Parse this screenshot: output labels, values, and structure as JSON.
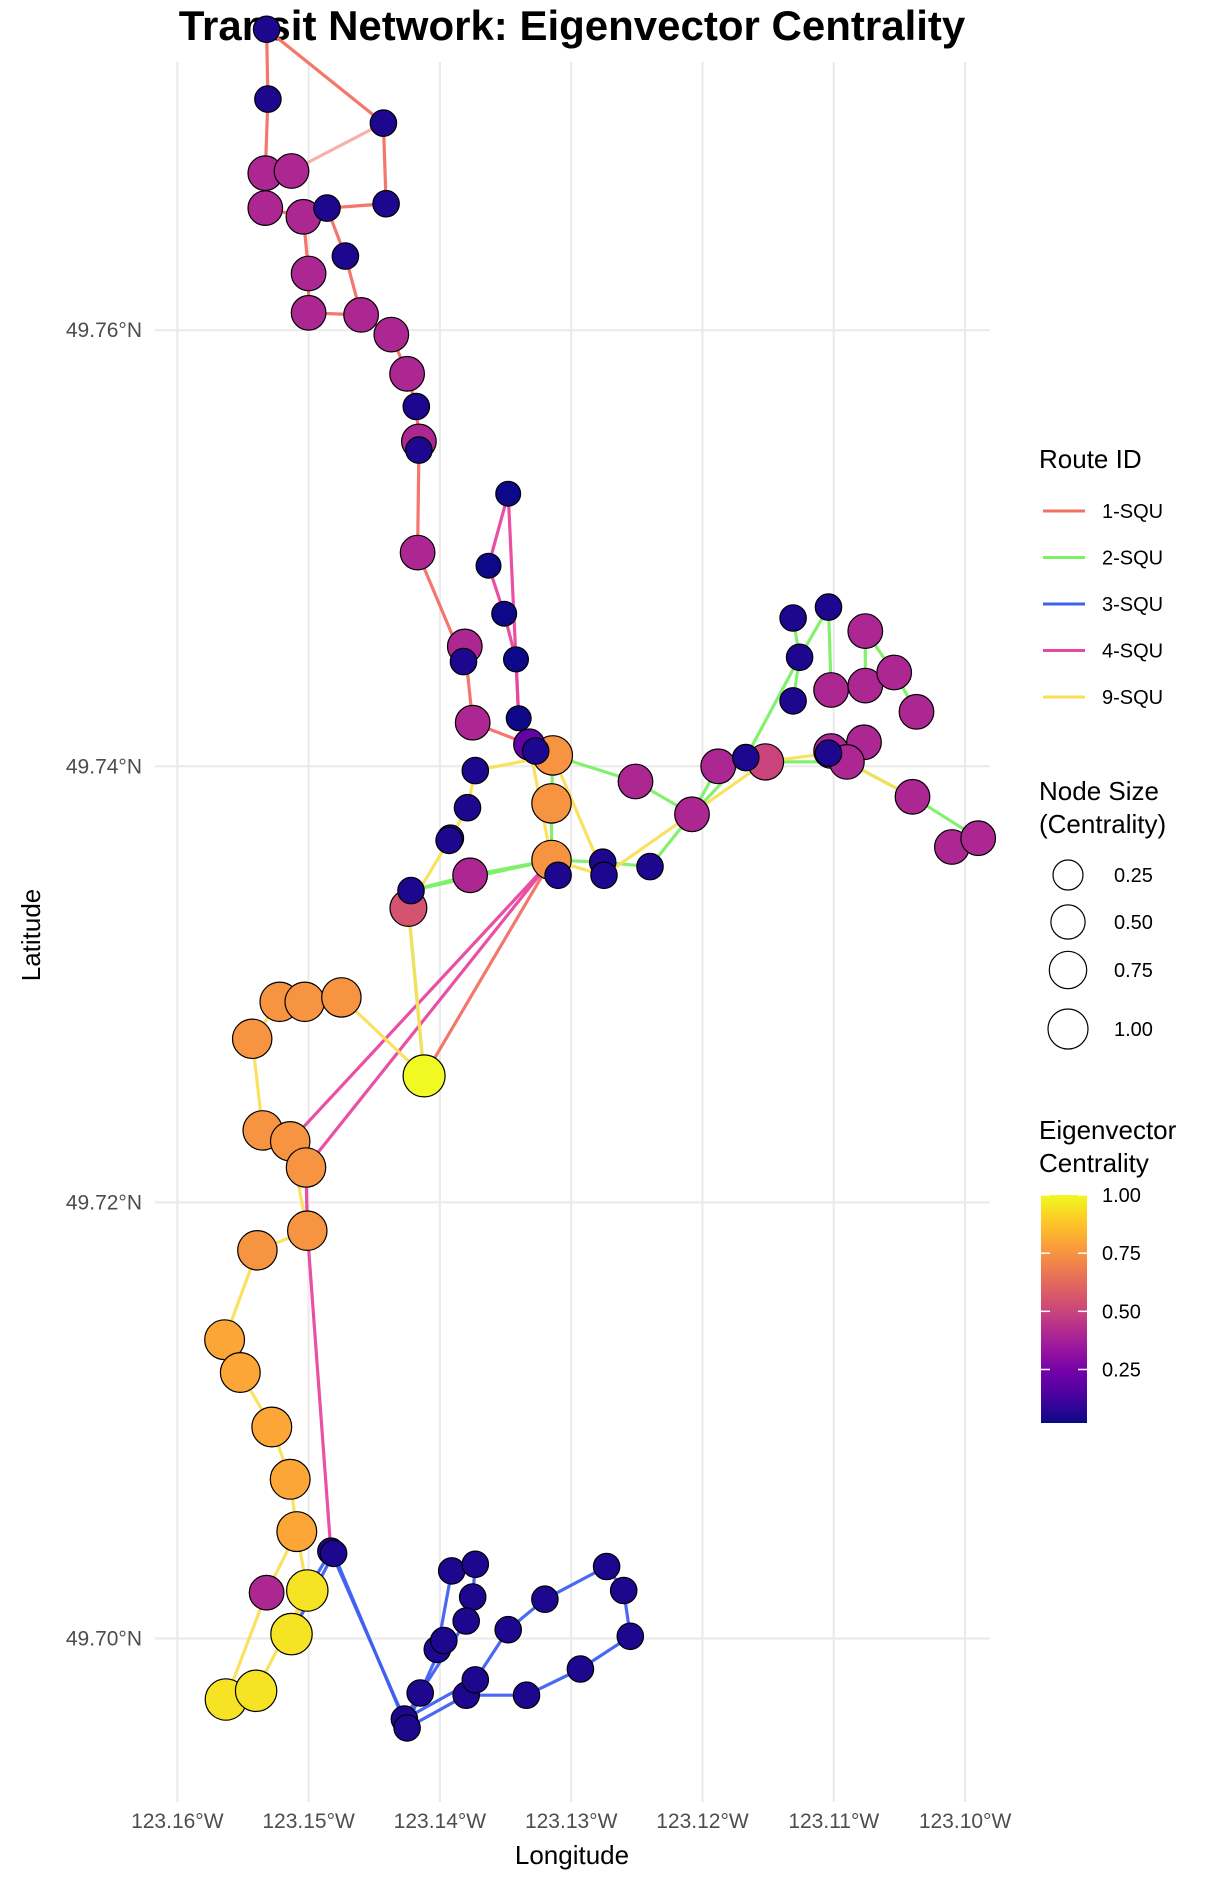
{
  "chart_data": {
    "type": "scatter",
    "title": "Transit Network: Eigenvector Centrality",
    "xlabel": "Longitude",
    "ylabel": "Latitude",
    "xlim": [
      -123.1617,
      -123.0981
    ],
    "ylim": [
      49.6925,
      49.7723
    ],
    "x_ticks": [
      {
        "value": -123.16,
        "label": "123.16°W"
      },
      {
        "value": -123.15,
        "label": "123.15°W"
      },
      {
        "value": -123.14,
        "label": "123.14°W"
      },
      {
        "value": -123.13,
        "label": "123.13°W"
      },
      {
        "value": -123.12,
        "label": "123.12°W"
      },
      {
        "value": -123.11,
        "label": "123.11°W"
      },
      {
        "value": -123.1,
        "label": "123.10°W"
      }
    ],
    "y_ticks": [
      {
        "value": 49.7,
        "label": "49.70°N"
      },
      {
        "value": 49.72,
        "label": "49.72°N"
      },
      {
        "value": 49.74,
        "label": "49.74°N"
      },
      {
        "value": 49.76,
        "label": "49.76°N"
      }
    ],
    "grid": true,
    "routes": {
      "title": "Route ID",
      "items": [
        {
          "name": "1-SQU",
          "color": "#f27064"
        },
        {
          "name": "2-SQU",
          "color": "#7cf066"
        },
        {
          "name": "3-SQU",
          "color": "#4060f0"
        },
        {
          "name": "4-SQU",
          "color": "#e8479f"
        },
        {
          "name": "9-SQU",
          "color": "#f9df5a"
        }
      ]
    },
    "size_legend": {
      "title_lines": [
        "Node Size",
        "(Centrality)"
      ],
      "items": [
        {
          "value": 0.25,
          "label": "0.25"
        },
        {
          "value": 0.5,
          "label": "0.50"
        },
        {
          "value": 0.75,
          "label": "0.75"
        },
        {
          "value": 1.0,
          "label": "1.00"
        }
      ]
    },
    "color_legend": {
      "title_lines": [
        "Eigenvector",
        "Centrality"
      ],
      "colormap": "plasma",
      "range": [
        0.02,
        1.0
      ],
      "ticks": [
        {
          "value": 1.0,
          "label": "1.00"
        },
        {
          "value": 0.75,
          "label": "0.75"
        },
        {
          "value": 0.5,
          "label": "0.50"
        },
        {
          "value": 0.25,
          "label": "0.25"
        }
      ]
    },
    "nodes": [
      {
        "id": "a1",
        "lon": -123.1532,
        "lat": 49.7738,
        "c": 0.05
      },
      {
        "id": "a2",
        "lon": -123.1531,
        "lat": 49.7706,
        "c": 0.05
      },
      {
        "id": "a3",
        "lon": -123.1443,
        "lat": 49.7695,
        "c": 0.05
      },
      {
        "id": "a4",
        "lon": -123.1533,
        "lat": 49.7672,
        "c": 0.4
      },
      {
        "id": "a5",
        "lon": -123.1513,
        "lat": 49.7673,
        "c": 0.4
      },
      {
        "id": "a6",
        "lon": -123.1533,
        "lat": 49.7656,
        "c": 0.4
      },
      {
        "id": "a7",
        "lon": -123.1504,
        "lat": 49.7652,
        "c": 0.4
      },
      {
        "id": "a8",
        "lon": -123.1486,
        "lat": 49.7656,
        "c": 0.05
      },
      {
        "id": "a9",
        "lon": -123.1441,
        "lat": 49.7658,
        "c": 0.05
      },
      {
        "id": "a10",
        "lon": -123.1472,
        "lat": 49.7634,
        "c": 0.05
      },
      {
        "id": "a11",
        "lon": -123.15,
        "lat": 49.7626,
        "c": 0.4
      },
      {
        "id": "a12",
        "lon": -123.15,
        "lat": 49.7608,
        "c": 0.4
      },
      {
        "id": "a13",
        "lon": -123.146,
        "lat": 49.7607,
        "c": 0.4
      },
      {
        "id": "a14",
        "lon": -123.1437,
        "lat": 49.7598,
        "c": 0.4
      },
      {
        "id": "a15",
        "lon": -123.1425,
        "lat": 49.758,
        "c": 0.4
      },
      {
        "id": "a16",
        "lon": -123.1418,
        "lat": 49.7565,
        "c": 0.05
      },
      {
        "id": "a17",
        "lon": -123.1416,
        "lat": 49.7545,
        "c": 0.05
      },
      {
        "id": "a18",
        "lon": -123.1416,
        "lat": 49.7549,
        "c": 0.4
      },
      {
        "id": "a19",
        "lon": -123.1417,
        "lat": 49.7498,
        "c": 0.4
      },
      {
        "id": "a20",
        "lon": -123.1382,
        "lat": 49.7448,
        "c": 0.05
      },
      {
        "id": "a21",
        "lon": -123.1381,
        "lat": 49.7455,
        "c": 0.4
      },
      {
        "id": "a22",
        "lon": -123.1375,
        "lat": 49.742,
        "c": 0.4
      },
      {
        "id": "p1",
        "lon": -123.1348,
        "lat": 49.7525,
        "c": 0.02
      },
      {
        "id": "p2",
        "lon": -123.1363,
        "lat": 49.7492,
        "c": 0.02
      },
      {
        "id": "p3",
        "lon": -123.1351,
        "lat": 49.747,
        "c": 0.02
      },
      {
        "id": "p4",
        "lon": -123.1342,
        "lat": 49.7449,
        "c": 0.02
      },
      {
        "id": "p5",
        "lon": -123.134,
        "lat": 49.7422,
        "c": 0.02
      },
      {
        "id": "c1",
        "lon": -123.1332,
        "lat": 49.741,
        "c": 0.2
      },
      {
        "id": "c2",
        "lon": -123.1327,
        "lat": 49.7407,
        "c": 0.05
      },
      {
        "id": "c3",
        "lon": -123.1314,
        "lat": 49.7405,
        "c": 0.75
      },
      {
        "id": "c4",
        "lon": -123.1315,
        "lat": 49.7383,
        "c": 0.75
      },
      {
        "id": "c5",
        "lon": -123.1315,
        "lat": 49.7357,
        "c": 0.75
      },
      {
        "id": "c6",
        "lon": -123.131,
        "lat": 49.735,
        "c": 0.05
      },
      {
        "id": "d1",
        "lon": -123.1373,
        "lat": 49.7398,
        "c": 0.05
      },
      {
        "id": "d2",
        "lon": -123.1379,
        "lat": 49.7381,
        "c": 0.05
      },
      {
        "id": "d3",
        "lon": -123.1392,
        "lat": 49.7367,
        "c": 0.05
      },
      {
        "id": "d4",
        "lon": -123.1393,
        "lat": 49.7366,
        "c": 0.05
      },
      {
        "id": "d5",
        "lon": -123.1377,
        "lat": 49.735,
        "c": 0.4
      },
      {
        "id": "d6",
        "lon": -123.1422,
        "lat": 49.7343,
        "c": 0.05
      },
      {
        "id": "d7",
        "lon": -123.1424,
        "lat": 49.7335,
        "c": 0.55
      },
      {
        "id": "y1",
        "lon": -123.1412,
        "lat": 49.7258,
        "c": 1.0
      },
      {
        "id": "e1",
        "lon": -123.1276,
        "lat": 49.7356,
        "c": 0.05
      },
      {
        "id": "e2",
        "lon": -123.1275,
        "lat": 49.735,
        "c": 0.05
      },
      {
        "id": "e3",
        "lon": -123.124,
        "lat": 49.7354,
        "c": 0.05
      },
      {
        "id": "e4",
        "lon": -123.1251,
        "lat": 49.7393,
        "c": 0.4
      },
      {
        "id": "e5",
        "lon": -123.1208,
        "lat": 49.7378,
        "c": 0.4
      },
      {
        "id": "e6",
        "lon": -123.1188,
        "lat": 49.74,
        "c": 0.4
      },
      {
        "id": "e7",
        "lon": -123.1167,
        "lat": 49.7404,
        "c": 0.05
      },
      {
        "id": "e8",
        "lon": -123.1152,
        "lat": 49.7402,
        "c": 0.5
      },
      {
        "id": "e9",
        "lon": -123.1131,
        "lat": 49.7468,
        "c": 0.05
      },
      {
        "id": "e10",
        "lon": -123.1104,
        "lat": 49.7473,
        "c": 0.05
      },
      {
        "id": "e11",
        "lon": -123.1126,
        "lat": 49.745,
        "c": 0.05
      },
      {
        "id": "e12",
        "lon": -123.1131,
        "lat": 49.743,
        "c": 0.05
      },
      {
        "id": "e13",
        "lon": -123.1076,
        "lat": 49.7462,
        "c": 0.4
      },
      {
        "id": "e14",
        "lon": -123.1102,
        "lat": 49.7435,
        "c": 0.4
      },
      {
        "id": "e15",
        "lon": -123.1076,
        "lat": 49.7437,
        "c": 0.4
      },
      {
        "id": "e16",
        "lon": -123.1054,
        "lat": 49.7443,
        "c": 0.4
      },
      {
        "id": "e17",
        "lon": -123.1037,
        "lat": 49.7425,
        "c": 0.4
      },
      {
        "id": "e18",
        "lon": -123.1077,
        "lat": 49.7411,
        "c": 0.4
      },
      {
        "id": "e19",
        "lon": -123.1104,
        "lat": 49.7406,
        "c": 0.05
      },
      {
        "id": "e20",
        "lon": -123.1102,
        "lat": 49.7407,
        "c": 0.4
      },
      {
        "id": "e21",
        "lon": -123.109,
        "lat": 49.7402,
        "c": 0.4
      },
      {
        "id": "e22",
        "lon": -123.104,
        "lat": 49.7386,
        "c": 0.4
      },
      {
        "id": "e23",
        "lon": -123.101,
        "lat": 49.7363,
        "c": 0.4
      },
      {
        "id": "e24",
        "lon": -123.099,
        "lat": 49.7367,
        "c": 0.4
      },
      {
        "id": "w1",
        "lon": -123.1522,
        "lat": 49.7292,
        "c": 0.75
      },
      {
        "id": "w2",
        "lon": -123.1503,
        "lat": 49.7292,
        "c": 0.75
      },
      {
        "id": "w3",
        "lon": -123.1475,
        "lat": 49.7294,
        "c": 0.75
      },
      {
        "id": "w4",
        "lon": -123.1543,
        "lat": 49.7275,
        "c": 0.75
      },
      {
        "id": "w5",
        "lon": -123.1535,
        "lat": 49.7233,
        "c": 0.75
      },
      {
        "id": "w6",
        "lon": -123.1514,
        "lat": 49.7228,
        "c": 0.75
      },
      {
        "id": "w7",
        "lon": -123.1502,
        "lat": 49.7216,
        "c": 0.75
      },
      {
        "id": "w8",
        "lon": -123.1501,
        "lat": 49.7187,
        "c": 0.75
      },
      {
        "id": "w9",
        "lon": -123.1539,
        "lat": 49.7178,
        "c": 0.75
      },
      {
        "id": "w10",
        "lon": -123.1564,
        "lat": 49.7137,
        "c": 0.8
      },
      {
        "id": "w11",
        "lon": -123.1552,
        "lat": 49.7122,
        "c": 0.8
      },
      {
        "id": "w12",
        "lon": -123.1528,
        "lat": 49.7097,
        "c": 0.8
      },
      {
        "id": "w13",
        "lon": -123.1514,
        "lat": 49.7073,
        "c": 0.8
      },
      {
        "id": "w14",
        "lon": -123.1509,
        "lat": 49.7049,
        "c": 0.8
      },
      {
        "id": "w15",
        "lon": -123.1532,
        "lat": 49.7021,
        "c": 0.4
      },
      {
        "id": "w16",
        "lon": -123.1501,
        "lat": 49.7022,
        "c": 0.95
      },
      {
        "id": "w17",
        "lon": -123.1513,
        "lat": 49.7002,
        "c": 0.95
      },
      {
        "id": "w18",
        "lon": -123.1563,
        "lat": 49.6972,
        "c": 0.95
      },
      {
        "id": "w19",
        "lon": -123.154,
        "lat": 49.6976,
        "c": 0.95
      },
      {
        "id": "b1",
        "lon": -123.1483,
        "lat": 49.704,
        "c": 0.05
      },
      {
        "id": "b2",
        "lon": -123.1481,
        "lat": 49.7039,
        "c": 0.05
      },
      {
        "id": "b3",
        "lon": -123.1427,
        "lat": 49.6963,
        "c": 0.05
      },
      {
        "id": "b4",
        "lon": -123.1425,
        "lat": 49.6959,
        "c": 0.05
      },
      {
        "id": "b5",
        "lon": -123.1415,
        "lat": 49.6975,
        "c": 0.05
      },
      {
        "id": "b6",
        "lon": -123.1402,
        "lat": 49.6995,
        "c": 0.05
      },
      {
        "id": "b7",
        "lon": -123.1397,
        "lat": 49.6999,
        "c": 0.05
      },
      {
        "id": "b8",
        "lon": -123.1391,
        "lat": 49.7031,
        "c": 0.05
      },
      {
        "id": "b9",
        "lon": -123.1373,
        "lat": 49.7034,
        "c": 0.05
      },
      {
        "id": "b10",
        "lon": -123.1375,
        "lat": 49.7019,
        "c": 0.05
      },
      {
        "id": "b11",
        "lon": -123.138,
        "lat": 49.7008,
        "c": 0.05
      },
      {
        "id": "b12",
        "lon": -123.138,
        "lat": 49.6974,
        "c": 0.05
      },
      {
        "id": "b13",
        "lon": -123.1373,
        "lat": 49.6981,
        "c": 0.05
      },
      {
        "id": "b14",
        "lon": -123.1348,
        "lat": 49.7004,
        "c": 0.05
      },
      {
        "id": "b15",
        "lon": -123.1334,
        "lat": 49.6974,
        "c": 0.05
      },
      {
        "id": "b16",
        "lon": -123.132,
        "lat": 49.7018,
        "c": 0.05
      },
      {
        "id": "b17",
        "lon": -123.1293,
        "lat": 49.6986,
        "c": 0.05
      },
      {
        "id": "b18",
        "lon": -123.1273,
        "lat": 49.7033,
        "c": 0.05
      },
      {
        "id": "b19",
        "lon": -123.126,
        "lat": 49.7022,
        "c": 0.05
      },
      {
        "id": "b20",
        "lon": -123.1255,
        "lat": 49.7001,
        "c": 0.05
      }
    ],
    "edges": [
      {
        "route": "1-SQU",
        "path": [
          "a1",
          "a2",
          "a4"
        ]
      },
      {
        "route": "1-SQU",
        "path": [
          "a1",
          "a3",
          "a9",
          "a8",
          "a7",
          "a6"
        ]
      },
      {
        "route": "1-SQU",
        "path": [
          "a3",
          "a5"
        ],
        "faded": true
      },
      {
        "route": "1-SQU",
        "path": [
          "a5",
          "a4",
          "a6"
        ]
      },
      {
        "route": "1-SQU",
        "path": [
          "a8",
          "a10",
          "a13",
          "a14",
          "a15",
          "a16",
          "a18",
          "a17",
          "a19",
          "a20",
          "a21",
          "a22",
          "c1",
          "c3"
        ]
      },
      {
        "route": "1-SQU",
        "path": [
          "a7",
          "a11",
          "a12",
          "a13"
        ]
      },
      {
        "route": "1-SQU",
        "path": [
          "c5",
          "y1"
        ]
      },
      {
        "route": "4-SQU",
        "path": [
          "p1",
          "p2",
          "p3",
          "p4",
          "p5",
          "c1"
        ]
      },
      {
        "route": "4-SQU",
        "path": [
          "p1",
          "p5"
        ]
      },
      {
        "route": "4-SQU",
        "path": [
          "c5",
          "w6",
          "w7",
          "w8",
          "b1",
          "b2"
        ]
      },
      {
        "route": "4-SQU",
        "path": [
          "c5",
          "w7"
        ]
      },
      {
        "route": "2-SQU",
        "path": [
          "c3",
          "c4",
          "c5",
          "e1",
          "e3",
          "e5",
          "e6",
          "e8",
          "e21",
          "e22",
          "e24",
          "e23"
        ]
      },
      {
        "route": "2-SQU",
        "path": [
          "c3",
          "e4",
          "e5",
          "e7",
          "e11",
          "e9"
        ]
      },
      {
        "route": "2-SQU",
        "path": [
          "e12",
          "e11",
          "e10",
          "e14",
          "e15",
          "e13",
          "e16",
          "e17"
        ]
      },
      {
        "route": "2-SQU",
        "path": [
          "c5",
          "d5",
          "d6",
          "d7",
          "y1"
        ]
      },
      {
        "route": "2-SQU",
        "path": [
          "d6",
          "c5"
        ]
      },
      {
        "route": "9-SQU",
        "path": [
          "c3",
          "d1",
          "d2",
          "d3",
          "d7",
          "y1"
        ]
      },
      {
        "route": "9-SQU",
        "path": [
          "c1",
          "c5",
          "e2",
          "e8",
          "e19",
          "e20",
          "e21",
          "e22"
        ]
      },
      {
        "route": "9-SQU",
        "path": [
          "c3",
          "e2"
        ]
      },
      {
        "route": "9-SQU",
        "path": [
          "w1",
          "w2",
          "w3",
          "y1"
        ]
      },
      {
        "route": "9-SQU",
        "path": [
          "w4",
          "w5",
          "w6",
          "w8",
          "w9",
          "w10",
          "w11",
          "w12",
          "w13",
          "w14",
          "w16",
          "w17"
        ]
      },
      {
        "route": "9-SQU",
        "path": [
          "w4",
          "w1"
        ]
      },
      {
        "route": "9-SQU",
        "path": [
          "w14",
          "w15",
          "w18",
          "w19",
          "w16"
        ]
      },
      {
        "route": "3-SQU",
        "path": [
          "w16",
          "b1",
          "b3",
          "b5",
          "b7",
          "b6",
          "b8"
        ]
      },
      {
        "route": "3-SQU",
        "path": [
          "w17",
          "b2",
          "b4",
          "b12",
          "b13",
          "b14",
          "b16",
          "b18",
          "b19",
          "b20",
          "b17",
          "b15",
          "b12"
        ]
      },
      {
        "route": "3-SQU",
        "path": [
          "b4",
          "b5",
          "b11",
          "b10",
          "b9"
        ]
      },
      {
        "route": "3-SQU",
        "path": [
          "b3",
          "b13"
        ]
      }
    ]
  }
}
